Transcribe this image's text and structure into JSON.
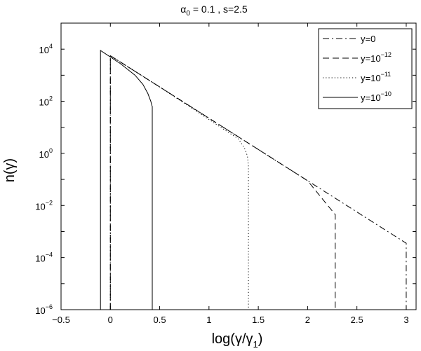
{
  "chart_data": {
    "type": "line",
    "title": {
      "alpha": "α",
      "alpha_sub": "0",
      "rest": " = 0.1 , s=2.5"
    },
    "xlabel": {
      "main": "log(γ/γ",
      "sub": "1",
      "close": ")"
    },
    "ylabel": "n(γ)",
    "xlim": [
      -0.5,
      3.1
    ],
    "ylim_log10": [
      -6,
      5
    ],
    "yscale": "log",
    "grid": false,
    "legend_position": "top-right",
    "x_ticks": [
      {
        "value": -0.5,
        "label": "−0.5"
      },
      {
        "value": 0,
        "label": "0"
      },
      {
        "value": 0.5,
        "label": "0.5"
      },
      {
        "value": 1,
        "label": "1"
      },
      {
        "value": 1.5,
        "label": "1.5"
      },
      {
        "value": 2,
        "label": "2"
      },
      {
        "value": 2.5,
        "label": "2.5"
      },
      {
        "value": 3,
        "label": "3"
      }
    ],
    "y_ticks": [
      {
        "exp": -6,
        "base": "10",
        "power": "−6"
      },
      {
        "exp": -4,
        "base": "10",
        "power": "−4"
      },
      {
        "exp": -2,
        "base": "10",
        "power": "−2"
      },
      {
        "exp": 0,
        "base": "10",
        "power": "0"
      },
      {
        "exp": 2,
        "base": "10",
        "power": "2"
      },
      {
        "exp": 4,
        "base": "10",
        "power": "4"
      }
    ],
    "series": [
      {
        "legend_base": "y=0",
        "legend_power": "",
        "style": "dashdot",
        "color": "#000000",
        "x": [
          0.0,
          0.0,
          1.0,
          2.0,
          3.0,
          3.0
        ],
        "y_log10": [
          -6.0,
          3.75,
          1.35,
          -1.05,
          -3.45,
          -6.0
        ]
      },
      {
        "legend_base": "y=10",
        "legend_power": "−12",
        "style": "dashed",
        "color": "#000000",
        "x": [
          0.0,
          0.0,
          1.0,
          2.0,
          2.28,
          2.28
        ],
        "y_log10": [
          -6.0,
          3.75,
          1.35,
          -1.05,
          -2.35,
          -6.0
        ]
      },
      {
        "legend_base": "y=10",
        "legend_power": "−11",
        "style": "dotted",
        "color": "#000000",
        "x": [
          0.0,
          0.0,
          0.5,
          1.0,
          1.3,
          1.36,
          1.39,
          1.4,
          1.4
        ],
        "y_log10": [
          -6.0,
          3.75,
          2.55,
          1.3,
          0.55,
          0.2,
          -0.1,
          -0.5,
          -6.0
        ]
      },
      {
        "legend_base": "y=10",
        "legend_power": "−10",
        "style": "solid",
        "color": "#000000",
        "x": [
          -0.1,
          -0.1,
          0.1,
          0.25,
          0.33,
          0.38,
          0.41,
          0.42,
          0.425,
          0.425
        ],
        "y_log10": [
          -6.0,
          3.95,
          3.45,
          3.0,
          2.65,
          2.3,
          2.0,
          1.85,
          1.8,
          -6.0
        ]
      }
    ]
  }
}
